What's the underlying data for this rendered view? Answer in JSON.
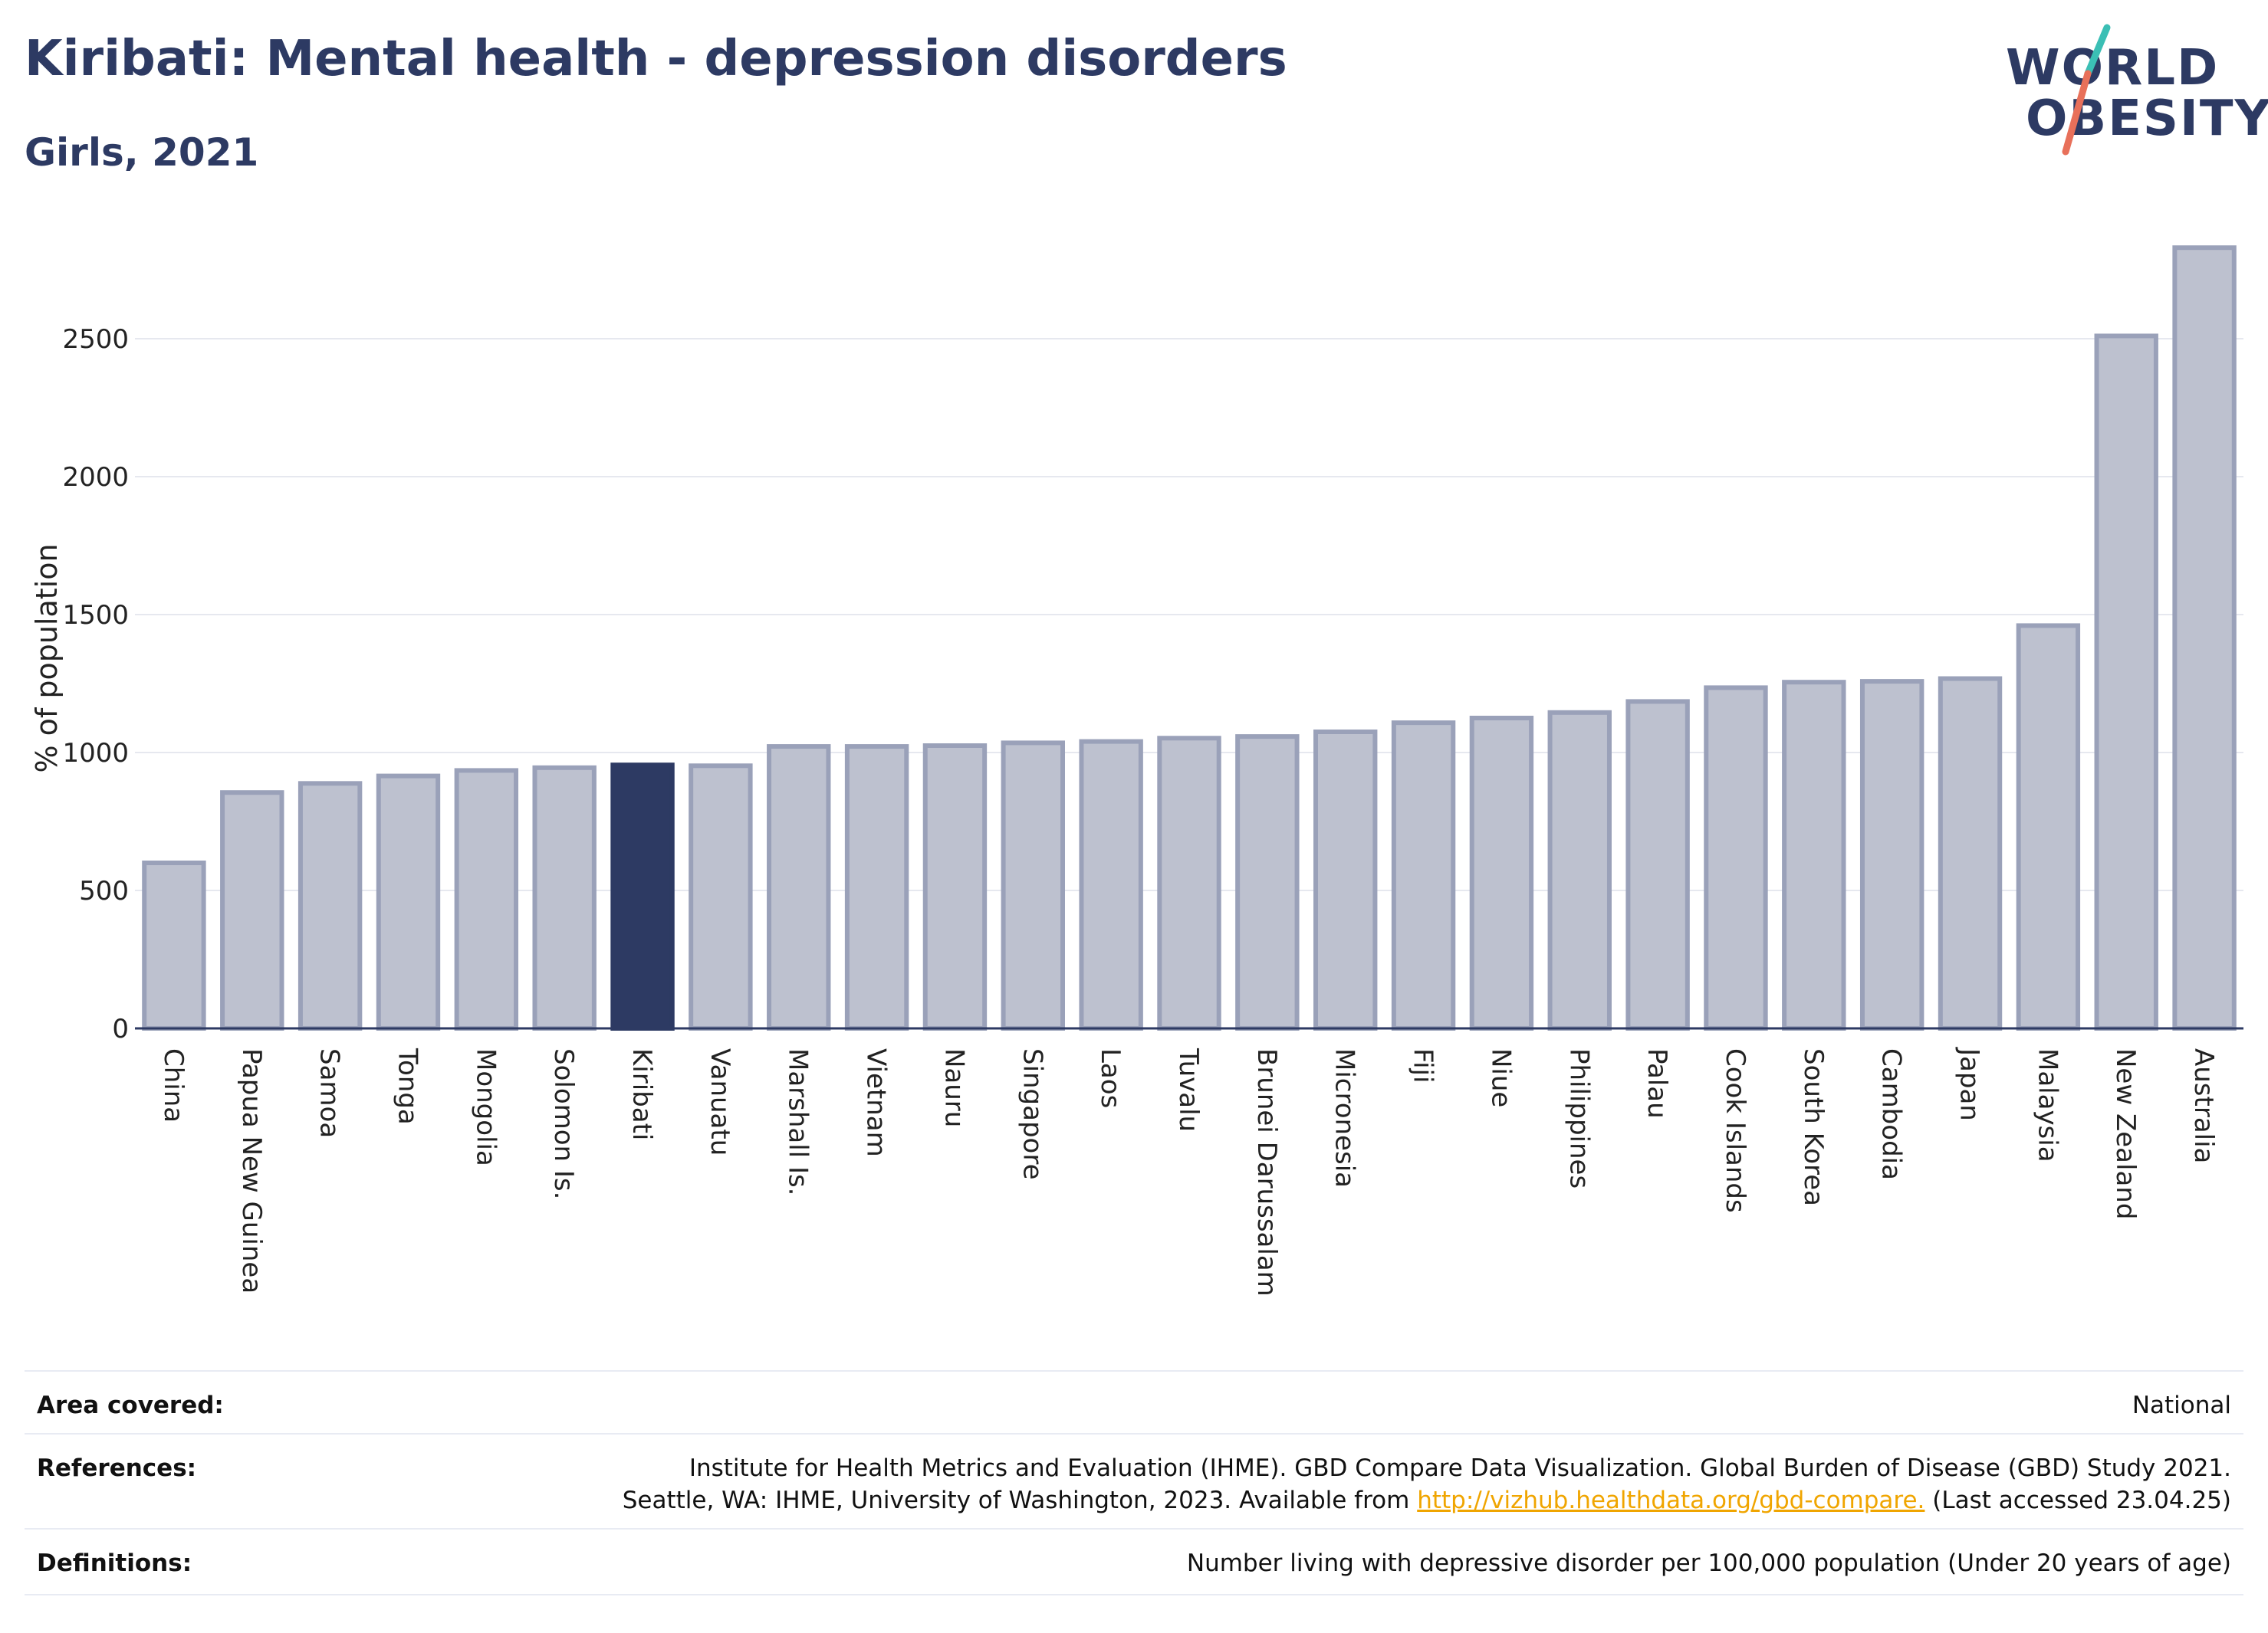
{
  "header": {
    "title": "Kiribati: Mental health - depression disorders",
    "subtitle": "Girls, 2021"
  },
  "logo": {
    "line1": "WORLD",
    "line2": "OBESITY",
    "colors": {
      "text": "#2d3a63",
      "slash_top": "#3bbfb5",
      "slash_bottom": "#e8705a"
    }
  },
  "colors": {
    "bar_fill": "#bdc1cf",
    "bar_stroke": "#9aa1b9",
    "highlight": "#2d3a63",
    "grid": "#e6e8ef",
    "link": "#f0a500"
  },
  "chart_data": {
    "type": "bar",
    "title": "Kiribati: Mental health - depression disorders",
    "subtitle": "Girls, 2021",
    "xlabel": "",
    "ylabel": "% of population",
    "ylim": [
      0,
      2850
    ],
    "yticks": [
      0,
      500,
      1000,
      1500,
      2000,
      2500
    ],
    "grid": true,
    "highlight": "Kiribati",
    "categories": [
      "China",
      "Papua New Guinea",
      "Samoa",
      "Tonga",
      "Mongolia",
      "Solomon Is.",
      "Kiribati",
      "Vanuatu",
      "Marshall Is.",
      "Vietnam",
      "Nauru",
      "Singapore",
      "Laos",
      "Tuvalu",
      "Brunei Darussalam",
      "Micronesia",
      "Fiji",
      "Niue",
      "Philippines",
      "Palau",
      "Cook Islands",
      "South Korea",
      "Cambodia",
      "Japan",
      "Malaysia",
      "New Zealand",
      "Australia"
    ],
    "values": [
      600,
      855,
      888,
      915,
      935,
      945,
      955,
      952,
      1022,
      1022,
      1025,
      1035,
      1040,
      1052,
      1058,
      1075,
      1108,
      1125,
      1145,
      1185,
      1235,
      1255,
      1258,
      1268,
      1460,
      2510,
      2830
    ]
  },
  "meta": {
    "area_label": "Area covered:",
    "area_value": "National",
    "references_label": "References:",
    "references_line1": "Institute for Health Metrics and Evaluation (IHME). GBD Compare Data Visualization. Global Burden of Disease (GBD) Study 2021.",
    "references_line2_pre": "Seattle, WA: IHME, University of Washington, 2023. Available from ",
    "references_link": "http://vizhub.healthdata.org/gbd-compare.",
    "references_line2_post": " (Last accessed 23.04.25)",
    "definitions_label": "Definitions:",
    "definitions_value": "Number living with depressive disorder per 100,000 population (Under 20 years of age)"
  }
}
